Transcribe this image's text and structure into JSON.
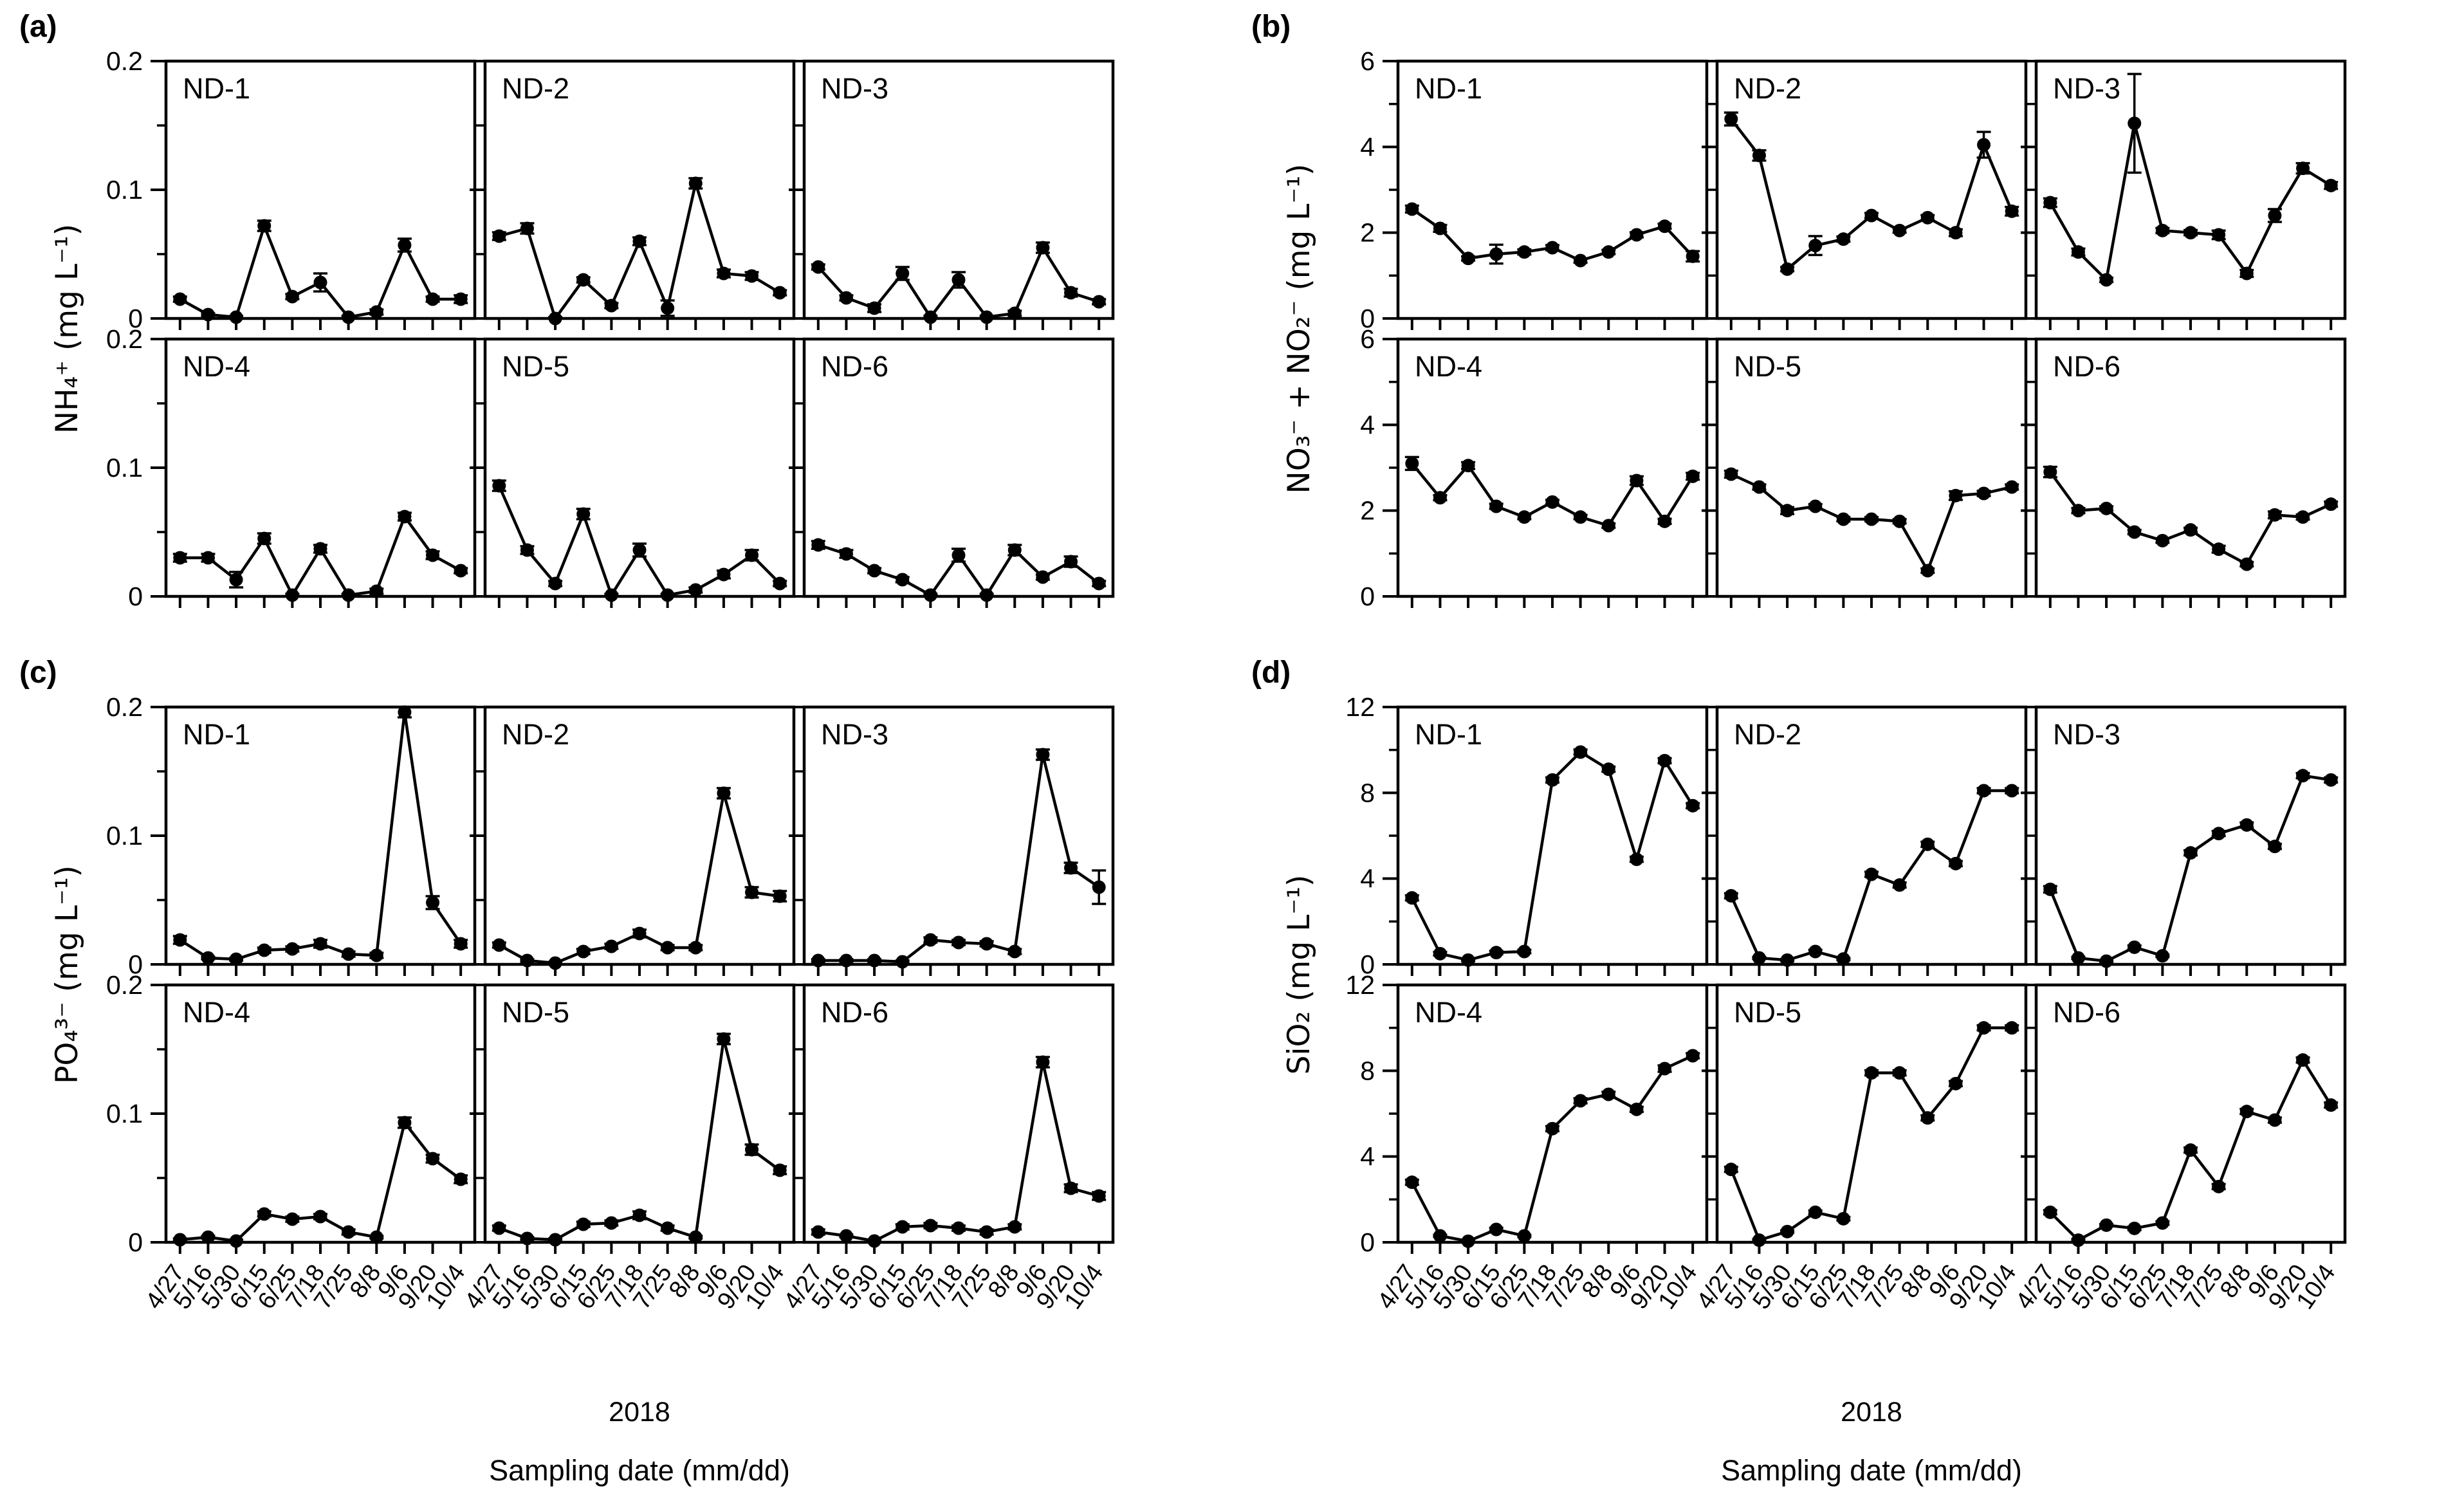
{
  "figure_title": "",
  "panels_letters": [
    "(a)",
    "(b)",
    "(c)",
    "(d)"
  ],
  "chart_data": [
    {
      "type": "line",
      "panel": "(a)",
      "ylabel": "NH₄⁺ (mg L⁻¹)",
      "ylim": [
        0,
        0.2
      ],
      "yticks": [
        0,
        0.1,
        0.2
      ],
      "ytick_labels": [
        "0",
        "0.1",
        "0.2"
      ],
      "yminor": [
        0.05,
        0.15
      ],
      "categories": [
        "4/27",
        "5/16",
        "5/30",
        "6/15",
        "6/25",
        "7/18",
        "7/25",
        "8/8",
        "9/6",
        "9/20",
        "10/4"
      ],
      "x_year": "2018",
      "xlabel": "Sampling date (mm/dd)",
      "show_x_labels": false,
      "grid": false,
      "legend": "none",
      "series": [
        {
          "name": "ND-1",
          "values": [
            0.015,
            0.003,
            0.001,
            0.072,
            0.017,
            0.028,
            0.001,
            0.005,
            0.057,
            0.015,
            0.015
          ],
          "errors": [
            0.002,
            0.001,
            0.001,
            0.004,
            0.002,
            0.007,
            0.001,
            0.002,
            0.005,
            0.002,
            0.003
          ]
        },
        {
          "name": "ND-2",
          "values": [
            0.064,
            0.07,
            0.0,
            0.03,
            0.01,
            0.06,
            0.008,
            0.105,
            0.035,
            0.033,
            0.02
          ],
          "errors": [
            0.003,
            0.004,
            0.001,
            0.002,
            0.002,
            0.003,
            0.006,
            0.004,
            0.003,
            0.003,
            0.002
          ]
        },
        {
          "name": "ND-3",
          "values": [
            0.04,
            0.016,
            0.008,
            0.035,
            0.001,
            0.03,
            0.001,
            0.004,
            0.055,
            0.02,
            0.013
          ],
          "errors": [
            0.002,
            0.002,
            0.003,
            0.005,
            0.001,
            0.006,
            0.001,
            0.002,
            0.004,
            0.003,
            0.002
          ]
        },
        {
          "name": "ND-4",
          "values": [
            0.03,
            0.03,
            0.013,
            0.045,
            0.001,
            0.037,
            0.001,
            0.004,
            0.062,
            0.032,
            0.02
          ],
          "errors": [
            0.003,
            0.003,
            0.006,
            0.004,
            0.001,
            0.003,
            0.001,
            0.002,
            0.003,
            0.003,
            0.002
          ]
        },
        {
          "name": "ND-5",
          "values": [
            0.086,
            0.036,
            0.01,
            0.064,
            0.001,
            0.036,
            0.001,
            0.005,
            0.017,
            0.032,
            0.01
          ],
          "errors": [
            0.004,
            0.003,
            0.002,
            0.004,
            0.001,
            0.005,
            0.001,
            0.002,
            0.003,
            0.004,
            0.002
          ]
        },
        {
          "name": "ND-6",
          "values": [
            0.04,
            0.033,
            0.02,
            0.013,
            0.001,
            0.032,
            0.001,
            0.036,
            0.015,
            0.027,
            0.01
          ],
          "errors": [
            0.003,
            0.003,
            0.002,
            0.002,
            0.001,
            0.005,
            0.001,
            0.004,
            0.002,
            0.004,
            0.002
          ]
        }
      ]
    },
    {
      "type": "line",
      "panel": "(b)",
      "ylabel": "NO₃⁻ + NO₂⁻ (mg L⁻¹)",
      "ylim": [
        0,
        6
      ],
      "yticks": [
        0,
        2,
        4,
        6
      ],
      "ytick_labels": [
        "0",
        "2",
        "4",
        "6"
      ],
      "yminor": [
        1,
        3,
        5
      ],
      "categories": [
        "4/27",
        "5/16",
        "5/30",
        "6/15",
        "6/25",
        "7/18",
        "7/25",
        "8/8",
        "9/6",
        "9/20",
        "10/4"
      ],
      "x_year": "2018",
      "xlabel": "Sampling date (mm/dd)",
      "show_x_labels": false,
      "grid": false,
      "legend": "none",
      "series": [
        {
          "name": "ND-1",
          "values": [
            2.55,
            2.1,
            1.4,
            1.5,
            1.55,
            1.65,
            1.35,
            1.55,
            1.95,
            2.15,
            1.45
          ],
          "errors": [
            0.08,
            0.08,
            0.05,
            0.22,
            0.06,
            0.06,
            0.05,
            0.05,
            0.06,
            0.06,
            0.12
          ]
        },
        {
          "name": "ND-2",
          "values": [
            4.65,
            3.8,
            1.15,
            1.7,
            1.85,
            2.4,
            2.05,
            2.35,
            2.0,
            4.05,
            2.5
          ],
          "errors": [
            0.15,
            0.12,
            0.05,
            0.22,
            0.06,
            0.06,
            0.05,
            0.06,
            0.08,
            0.3,
            0.1
          ]
        },
        {
          "name": "ND-3",
          "values": [
            2.7,
            1.55,
            0.9,
            4.55,
            2.05,
            2.0,
            1.95,
            1.05,
            2.4,
            3.5,
            3.1
          ],
          "errors": [
            0.1,
            0.08,
            0.05,
            1.15,
            0.06,
            0.06,
            0.1,
            0.08,
            0.15,
            0.12,
            0.08
          ]
        },
        {
          "name": "ND-4",
          "values": [
            3.1,
            2.3,
            3.05,
            2.1,
            1.85,
            2.2,
            1.85,
            1.65,
            2.7,
            1.75,
            2.8
          ],
          "errors": [
            0.15,
            0.06,
            0.08,
            0.06,
            0.05,
            0.05,
            0.05,
            0.05,
            0.1,
            0.06,
            0.08
          ]
        },
        {
          "name": "ND-5",
          "values": [
            2.85,
            2.55,
            2.0,
            2.1,
            1.8,
            1.8,
            1.75,
            0.6,
            2.35,
            2.4,
            2.55
          ],
          "errors": [
            0.08,
            0.06,
            0.08,
            0.05,
            0.05,
            0.05,
            0.05,
            0.05,
            0.1,
            0.06,
            0.06
          ]
        },
        {
          "name": "ND-6",
          "values": [
            2.9,
            2.0,
            2.05,
            1.5,
            1.3,
            1.55,
            1.1,
            0.75,
            1.9,
            1.85,
            2.15
          ],
          "errors": [
            0.12,
            0.06,
            0.05,
            0.05,
            0.05,
            0.05,
            0.08,
            0.05,
            0.08,
            0.06,
            0.06
          ]
        }
      ]
    },
    {
      "type": "line",
      "panel": "(c)",
      "ylabel": "PO₄³⁻ (mg L⁻¹)",
      "ylim": [
        0,
        0.2
      ],
      "yticks": [
        0,
        0.1,
        0.2
      ],
      "ytick_labels": [
        "0",
        "0.1",
        "0.2"
      ],
      "yminor": [
        0.05,
        0.15
      ],
      "categories": [
        "4/27",
        "5/16",
        "5/30",
        "6/15",
        "6/25",
        "7/18",
        "7/25",
        "8/8",
        "9/6",
        "9/20",
        "10/4"
      ],
      "x_year": "2018",
      "xlabel": "Sampling date (mm/dd)",
      "show_x_labels": true,
      "grid": false,
      "legend": "none",
      "series": [
        {
          "name": "ND-1",
          "values": [
            0.019,
            0.005,
            0.004,
            0.011,
            0.012,
            0.016,
            0.008,
            0.007,
            0.196,
            0.048,
            0.016
          ],
          "errors": [
            0.003,
            0.001,
            0.001,
            0.002,
            0.002,
            0.003,
            0.002,
            0.002,
            0.004,
            0.005,
            0.003
          ]
        },
        {
          "name": "ND-2",
          "values": [
            0.015,
            0.003,
            0.001,
            0.01,
            0.014,
            0.024,
            0.013,
            0.013,
            0.133,
            0.056,
            0.053
          ],
          "errors": [
            0.002,
            0.001,
            0.001,
            0.002,
            0.002,
            0.003,
            0.002,
            0.002,
            0.004,
            0.004,
            0.004
          ]
        },
        {
          "name": "ND-3",
          "values": [
            0.003,
            0.003,
            0.003,
            0.002,
            0.019,
            0.017,
            0.016,
            0.01,
            0.163,
            0.075,
            0.06
          ],
          "errors": [
            0.001,
            0.001,
            0.001,
            0.001,
            0.002,
            0.002,
            0.002,
            0.002,
            0.004,
            0.004,
            0.013
          ]
        },
        {
          "name": "ND-4",
          "values": [
            0.002,
            0.004,
            0.001,
            0.022,
            0.018,
            0.02,
            0.008,
            0.004,
            0.093,
            0.065,
            0.049
          ],
          "errors": [
            0.001,
            0.001,
            0.001,
            0.002,
            0.002,
            0.002,
            0.002,
            0.001,
            0.004,
            0.003,
            0.003
          ]
        },
        {
          "name": "ND-5",
          "values": [
            0.011,
            0.003,
            0.002,
            0.014,
            0.015,
            0.021,
            0.011,
            0.004,
            0.158,
            0.072,
            0.056
          ],
          "errors": [
            0.002,
            0.001,
            0.001,
            0.002,
            0.002,
            0.003,
            0.002,
            0.001,
            0.004,
            0.004,
            0.003
          ]
        },
        {
          "name": "ND-6",
          "values": [
            0.008,
            0.005,
            0.001,
            0.012,
            0.013,
            0.011,
            0.008,
            0.012,
            0.14,
            0.042,
            0.036
          ],
          "errors": [
            0.002,
            0.001,
            0.001,
            0.002,
            0.002,
            0.002,
            0.002,
            0.002,
            0.004,
            0.003,
            0.003
          ]
        }
      ]
    },
    {
      "type": "line",
      "panel": "(d)",
      "ylabel": "SiO₂ (mg L⁻¹)",
      "ylim": [
        0,
        12
      ],
      "yticks": [
        0,
        4,
        8,
        12
      ],
      "ytick_labels": [
        "0",
        "4",
        "8",
        "12"
      ],
      "yminor": [
        2,
        6,
        10
      ],
      "categories": [
        "4/27",
        "5/16",
        "5/30",
        "6/15",
        "6/25",
        "7/18",
        "7/25",
        "8/8",
        "9/6",
        "9/20",
        "10/4"
      ],
      "x_year": "2018",
      "xlabel": "Sampling date (mm/dd)",
      "show_x_labels": true,
      "grid": false,
      "legend": "none",
      "series": [
        {
          "name": "ND-1",
          "values": [
            3.1,
            0.5,
            0.2,
            0.55,
            0.6,
            8.6,
            9.9,
            9.1,
            4.9,
            9.5,
            7.4
          ],
          "errors": [
            0.12,
            0.08,
            0.05,
            0.08,
            0.08,
            0.12,
            0.12,
            0.12,
            0.12,
            0.12,
            0.12
          ]
        },
        {
          "name": "ND-2",
          "values": [
            3.2,
            0.3,
            0.2,
            0.6,
            0.25,
            4.2,
            3.7,
            5.6,
            4.7,
            8.1,
            8.1
          ],
          "errors": [
            0.12,
            0.05,
            0.05,
            0.08,
            0.05,
            0.12,
            0.12,
            0.12,
            0.12,
            0.12,
            0.12
          ]
        },
        {
          "name": "ND-3",
          "values": [
            3.5,
            0.3,
            0.15,
            0.8,
            0.4,
            5.2,
            6.1,
            6.5,
            5.5,
            8.8,
            8.6
          ],
          "errors": [
            0.15,
            0.05,
            0.05,
            0.08,
            0.05,
            0.12,
            0.12,
            0.12,
            0.12,
            0.12,
            0.12
          ]
        },
        {
          "name": "ND-4",
          "values": [
            2.8,
            0.3,
            0.05,
            0.6,
            0.3,
            5.3,
            6.6,
            6.9,
            6.2,
            8.1,
            8.7
          ],
          "errors": [
            0.12,
            0.05,
            0.05,
            0.08,
            0.05,
            0.12,
            0.12,
            0.12,
            0.12,
            0.15,
            0.12
          ]
        },
        {
          "name": "ND-5",
          "values": [
            3.4,
            0.1,
            0.5,
            1.4,
            1.1,
            7.9,
            7.9,
            5.8,
            7.4,
            10.0,
            10.0
          ],
          "errors": [
            0.12,
            0.05,
            0.05,
            0.08,
            0.08,
            0.12,
            0.12,
            0.12,
            0.12,
            0.12,
            0.12
          ]
        },
        {
          "name": "ND-6",
          "values": [
            1.4,
            0.1,
            0.8,
            0.65,
            0.9,
            4.3,
            2.6,
            6.1,
            5.7,
            8.5,
            6.4
          ],
          "errors": [
            0.1,
            0.05,
            0.05,
            0.08,
            0.08,
            0.12,
            0.12,
            0.12,
            0.12,
            0.12,
            0.12
          ]
        }
      ]
    }
  ]
}
